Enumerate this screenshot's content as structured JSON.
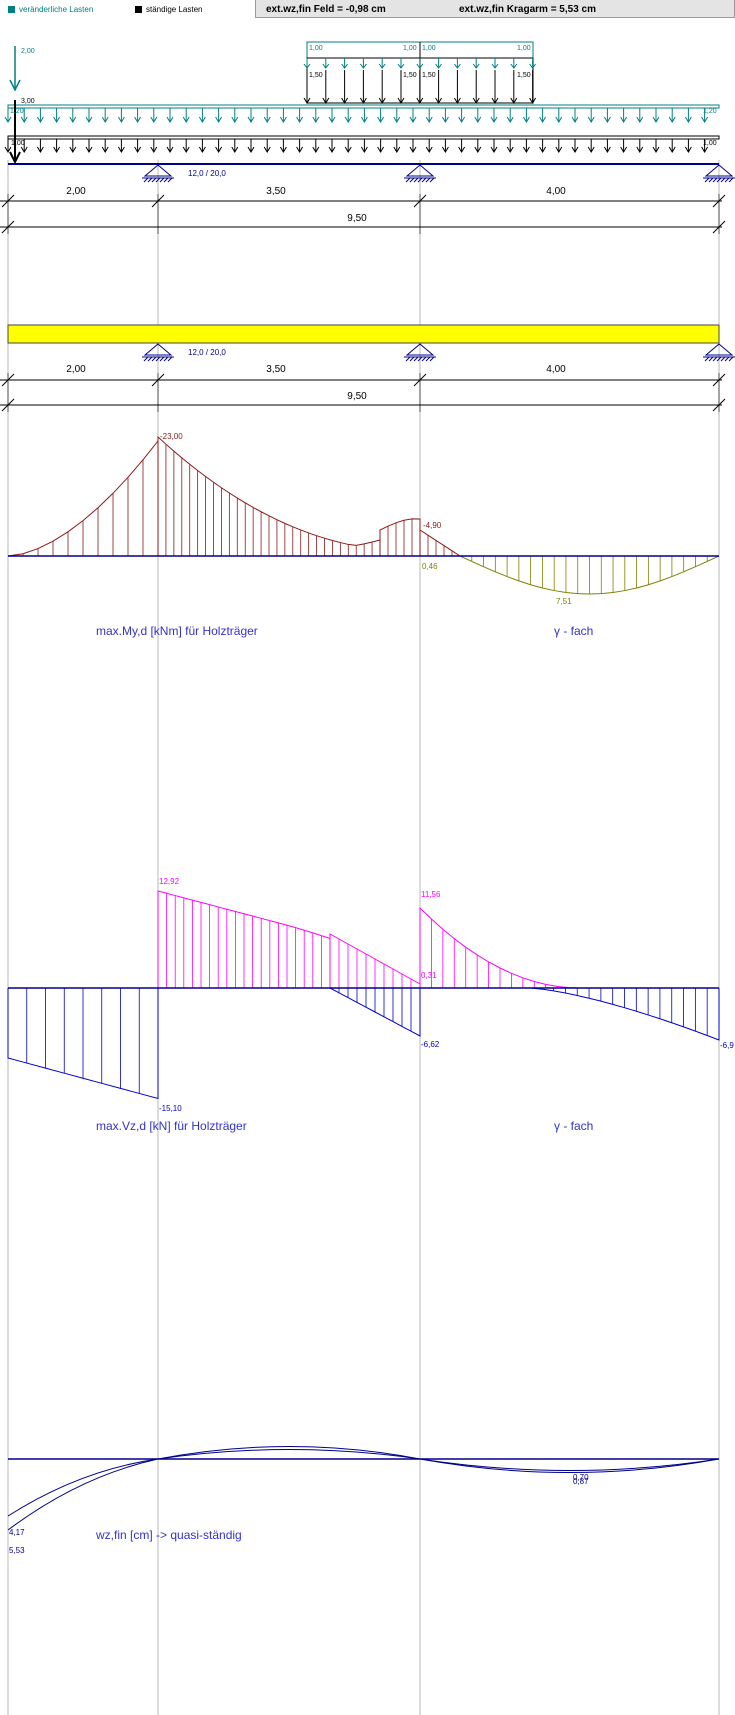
{
  "legend": {
    "variable_label": "veränderliche Lasten",
    "variable_color": "#008080",
    "permanent_label": "ständige Lasten",
    "permanent_color": "#000000"
  },
  "results": {
    "field_deflection": "ext.wz,fin Feld = -0,98 cm",
    "cantilever_deflection": "ext.wz,fin Kragarm = 5,53 cm"
  },
  "loads": {
    "point_load_variable": "2,00",
    "point_load_permanent": "3,00",
    "udl_variable": [
      "1,20",
      "1,20"
    ],
    "udl_permanent": [
      "1,00",
      "1,00"
    ],
    "patch_variable": [
      "1,00",
      "1,00",
      "1,00",
      "1,00"
    ],
    "patch_permanent": [
      "1,50",
      "1,50",
      "1,50",
      "1,50"
    ]
  },
  "structure": {
    "section": "12,0 / 20,0",
    "spans": [
      "2,00",
      "3,50",
      "4,00"
    ],
    "total": "9,50",
    "beam_color": "#ffff00"
  },
  "moment": {
    "title": "max.My,d [kNm] für Holzträger",
    "factor": "γ  - fach",
    "labels": [
      "-23,00",
      "-4,90",
      "0,46",
      "7,51"
    ],
    "neg_color": "#8b1a1a",
    "pos_color": "#808000"
  },
  "shear": {
    "title": "max.Vz,d [kN] für Holzträger",
    "factor": "γ  - fach",
    "labels": [
      "12,92",
      "11,56",
      "0,31",
      "-6,62",
      "-15,10",
      "-6,9"
    ],
    "pos_color": "#ff00ff",
    "neg_color": "#0000cc"
  },
  "deflection": {
    "title": "wz,fin [cm] -> quasi-ständig",
    "labels": [
      "4,17",
      "5,53",
      "0,70",
      "0,87"
    ],
    "color": "#00008b"
  }
}
